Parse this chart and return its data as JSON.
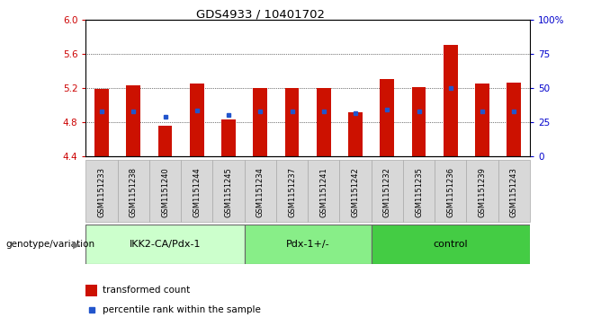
{
  "title": "GDS4933 / 10401702",
  "samples": [
    "GSM1151233",
    "GSM1151238",
    "GSM1151240",
    "GSM1151244",
    "GSM1151245",
    "GSM1151234",
    "GSM1151237",
    "GSM1151241",
    "GSM1151242",
    "GSM1151232",
    "GSM1151235",
    "GSM1151236",
    "GSM1151239",
    "GSM1151243"
  ],
  "red_values": [
    5.19,
    5.23,
    4.76,
    5.25,
    4.83,
    5.2,
    5.2,
    5.2,
    4.92,
    5.3,
    5.21,
    5.7,
    5.25,
    5.26
  ],
  "blue_values": [
    4.93,
    4.93,
    4.86,
    4.94,
    4.89,
    4.93,
    4.93,
    4.93,
    4.91,
    4.95,
    4.93,
    5.2,
    4.93,
    4.93
  ],
  "groups": [
    {
      "label": "IKK2-CA/Pdx-1",
      "start": 0,
      "end": 5,
      "color": "#ccffcc"
    },
    {
      "label": "Pdx-1+/-",
      "start": 5,
      "end": 9,
      "color": "#88ee88"
    },
    {
      "label": "control",
      "start": 9,
      "end": 14,
      "color": "#44cc44"
    }
  ],
  "y_min": 4.4,
  "y_max": 6.0,
  "y_ticks": [
    4.4,
    4.8,
    5.2,
    5.6,
    6.0
  ],
  "right_y_ticks": [
    0,
    25,
    50,
    75,
    100
  ],
  "bar_color": "#cc1100",
  "dot_color": "#2255cc",
  "ylabel_right_color": "#0000cc",
  "ylabel_left_color": "#cc0000",
  "grid_color": "#000000",
  "legend_red": "transformed count",
  "legend_blue": "percentile rank within the sample",
  "genotype_label": "genotype/variation"
}
